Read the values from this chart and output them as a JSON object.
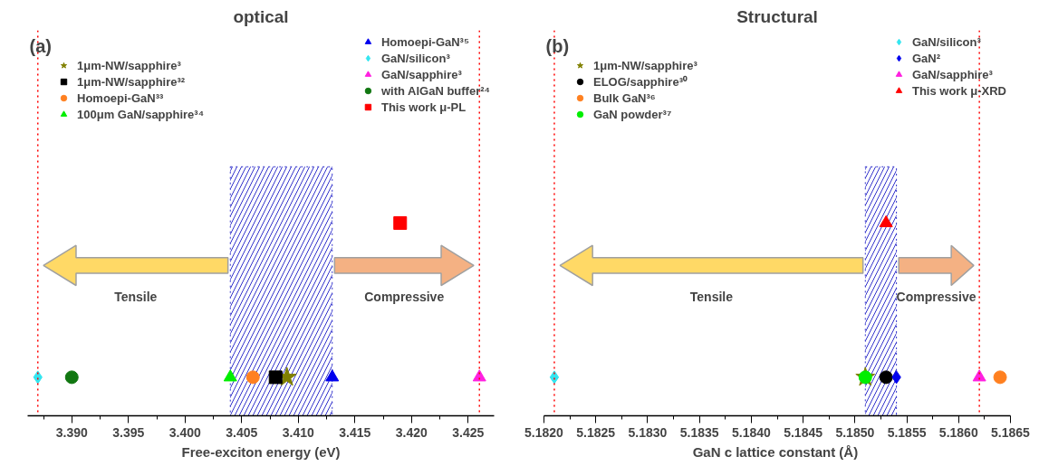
{
  "chart_data": [
    {
      "type": "scatter",
      "title": "optical",
      "xlabel": "Free-exciton energy (eV)",
      "orientation": "horizontal",
      "categories": [
        null,
        null,
        null,
        null,
        null
      ],
      "tick_labels": "x",
      "legend": "top",
      "xlim": [
        3.3861,
        3.4273
      ],
      "xticks": [
        {
          "value": 3.39,
          "label": "3.390"
        },
        {
          "value": 3.395,
          "label": "3.395"
        },
        {
          "value": 3.4,
          "label": "3.400"
        },
        {
          "value": 3.405,
          "label": "3.405"
        },
        {
          "value": 3.41,
          "label": "3.410"
        },
        {
          "value": 3.415,
          "label": "3.415"
        },
        {
          "value": 3.42,
          "label": "3.420"
        },
        {
          "value": 3.425,
          "label": "3.425"
        }
      ],
      "annotations": [
        "(a)",
        "Tensile",
        "Compressive"
      ],
      "bands": [
        {
          "axis": "x",
          "from": 3.404,
          "to": 3.413,
          "color": "#3333cc"
        }
      ],
      "ref_lines": [
        {
          "axis": "x",
          "value": 3.387,
          "color": "#ff0000",
          "line_style": "dotted"
        },
        {
          "axis": "x",
          "value": 3.426,
          "color": "#ff0000",
          "line_style": "dotted"
        }
      ],
      "series": [
        {
          "name": "1μm-NW/sapphire³",
          "color": "#808000",
          "marker": "star",
          "values": [
            null,
            null,
            null,
            null,
            3.409
          ]
        },
        {
          "name": "1μm-NW/sapphire³²",
          "color": "#000000",
          "marker": "square",
          "values": [
            null,
            null,
            null,
            null,
            3.408
          ]
        },
        {
          "name": "Homoepi-GaN³³",
          "color": "#ff8020",
          "marker": "circle",
          "values": [
            null,
            null,
            null,
            null,
            3.406
          ]
        },
        {
          "name": "100μm GaN/sapphire³⁴",
          "color": "#00ee00",
          "marker": "triangle",
          "values": [
            null,
            null,
            null,
            null,
            3.404
          ]
        },
        {
          "name": "Homoepi-GaN³⁵",
          "color": "#0000ee",
          "marker": "triangle",
          "values": [
            null,
            null,
            null,
            null,
            3.413
          ]
        },
        {
          "name": "GaN/silicon³",
          "color": "#33e6f0",
          "marker": "diamond",
          "values": [
            null,
            null,
            null,
            null,
            3.387
          ]
        },
        {
          "name": "GaN/sapphire³",
          "color": "#ff20e0",
          "marker": "triangle",
          "values": [
            null,
            null,
            null,
            null,
            3.426
          ]
        },
        {
          "name": "with AlGaN buffer²⁴",
          "color": "#117711",
          "marker": "circle",
          "values": [
            null,
            null,
            null,
            null,
            3.39
          ]
        },
        {
          "name": "This work μ-PL",
          "color": "#ff0000",
          "marker": "square",
          "values": [
            null,
            null,
            3.419,
            null,
            null
          ]
        }
      ]
    },
    {
      "type": "scatter",
      "title": "Structural",
      "xlabel": "GaN c lattice constant  (Å)",
      "orientation": "horizontal",
      "categories": [
        null,
        null,
        null,
        null,
        null
      ],
      "tick_labels": "x",
      "legend": "top",
      "xlim": [
        5.182,
        5.1865
      ],
      "xticks": [
        {
          "value": 5.182,
          "label": "5.1820"
        },
        {
          "value": 5.1825,
          "label": "5.1825"
        },
        {
          "value": 5.183,
          "label": "5.1830"
        },
        {
          "value": 5.1835,
          "label": "5.1835"
        },
        {
          "value": 5.184,
          "label": "5.1840"
        },
        {
          "value": 5.1845,
          "label": "5.1845"
        },
        {
          "value": 5.185,
          "label": "5.1850"
        },
        {
          "value": 5.1855,
          "label": "5.1855"
        },
        {
          "value": 5.186,
          "label": "5.1860"
        },
        {
          "value": 5.1865,
          "label": "5.1865"
        }
      ],
      "annotations": [
        "(b)",
        "Tensile",
        "Compressive"
      ],
      "bands": [
        {
          "axis": "x",
          "from": 5.1851,
          "to": 5.1854,
          "color": "#3333cc"
        }
      ],
      "ref_lines": [
        {
          "axis": "x",
          "value": 5.1821,
          "color": "#ff0000",
          "line_style": "dotted"
        },
        {
          "axis": "x",
          "value": 5.1862,
          "color": "#ff0000",
          "line_style": "dotted"
        }
      ],
      "series": [
        {
          "name": "1μm-NW/sapphire³",
          "color": "#808000",
          "marker": "star",
          "values": [
            null,
            null,
            null,
            null,
            5.1851
          ]
        },
        {
          "name": "ELOG/sapphire³⁰",
          "color": "#000000",
          "marker": "circle",
          "values": [
            null,
            null,
            null,
            null,
            5.1853
          ]
        },
        {
          "name": "Bulk GaN³⁶",
          "color": "#ff8020",
          "marker": "circle",
          "values": [
            null,
            null,
            null,
            null,
            5.1864
          ]
        },
        {
          "name": "GaN powder³⁷",
          "color": "#00ee00",
          "marker": "circle",
          "values": [
            null,
            null,
            null,
            null,
            5.1851
          ]
        },
        {
          "name": "GaN/silicon³",
          "color": "#33e6f0",
          "marker": "diamond",
          "values": [
            null,
            null,
            null,
            null,
            5.1821
          ]
        },
        {
          "name": "GaN²",
          "color": "#0000ee",
          "marker": "diamond",
          "values": [
            null,
            null,
            null,
            null,
            5.1854
          ]
        },
        {
          "name": "GaN/sapphire³",
          "color": "#ff20e0",
          "marker": "triangle",
          "values": [
            null,
            null,
            null,
            null,
            5.1862
          ]
        },
        {
          "name": "This work μ-XRD",
          "color": "#ff0000",
          "marker": "triangle",
          "values": [
            null,
            null,
            5.1853,
            null,
            null
          ]
        }
      ]
    }
  ]
}
